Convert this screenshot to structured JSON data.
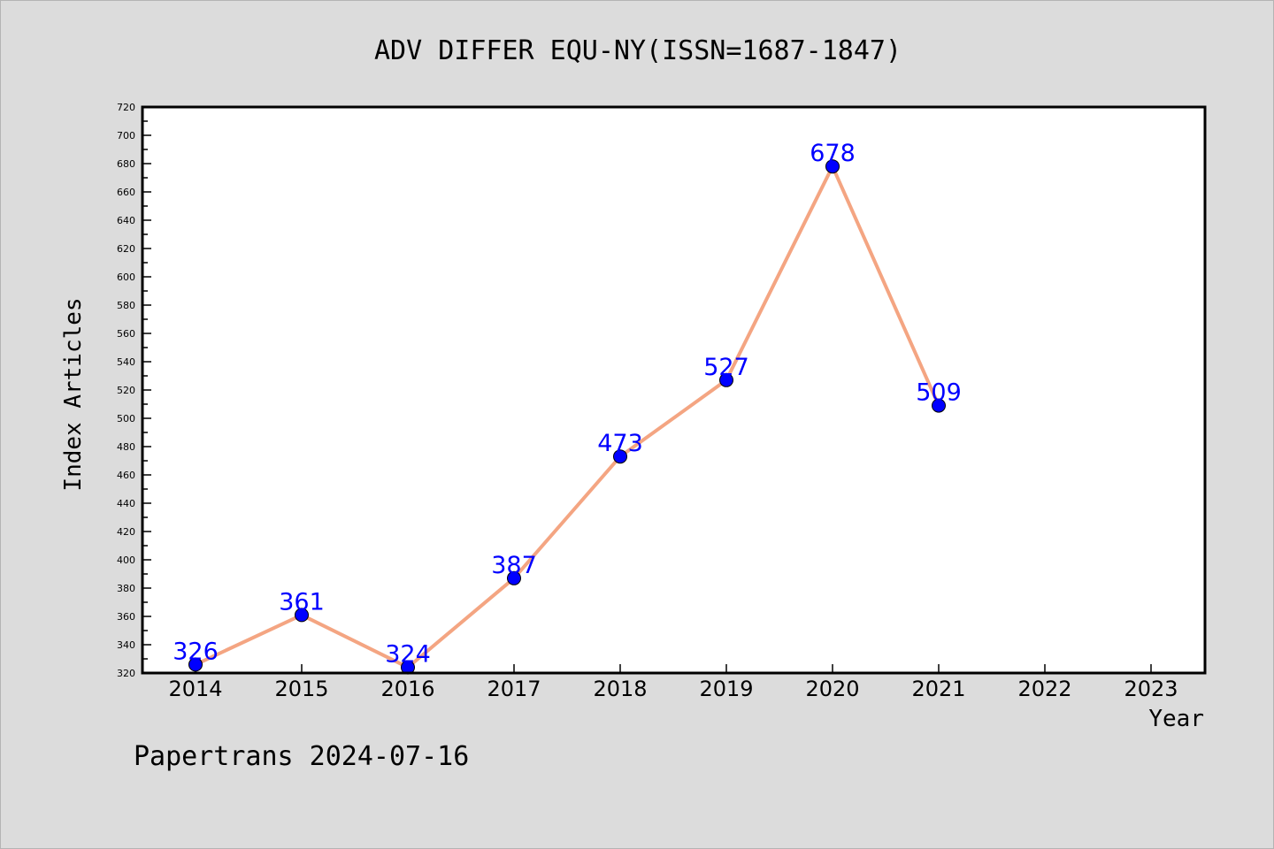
{
  "chart_data": {
    "type": "line",
    "title": "ADV DIFFER EQU-NY(ISSN=1687-1847)",
    "xlabel": "Year",
    "ylabel": "Index Articles",
    "categories": [
      "2014",
      "2015",
      "2016",
      "2017",
      "2018",
      "2019",
      "2020",
      "2021",
      "2022",
      "2023"
    ],
    "series": [
      {
        "values": [
          326,
          361,
          324,
          387,
          473,
          527,
          678,
          509,
          null,
          null
        ],
        "line_color": "#f4a582",
        "marker_color": "#0000ff"
      }
    ],
    "data_labels": [
      "326",
      "361",
      "324",
      "387",
      "473",
      "527",
      "678",
      "509"
    ],
    "ylim": [
      320,
      720
    ],
    "yticks": [
      "320",
      "340",
      "360",
      "380",
      "400",
      "420",
      "440",
      "460",
      "480",
      "500",
      "520",
      "540",
      "560",
      "580",
      "600",
      "620",
      "640",
      "660",
      "680",
      "700",
      "720"
    ],
    "grid": false,
    "legend": "none",
    "label_color": "#0000ff",
    "plot_background": "#ffffff",
    "page_background": "#dcdcdc"
  },
  "footer": {
    "credit": "Papertrans 2024-07-16"
  }
}
